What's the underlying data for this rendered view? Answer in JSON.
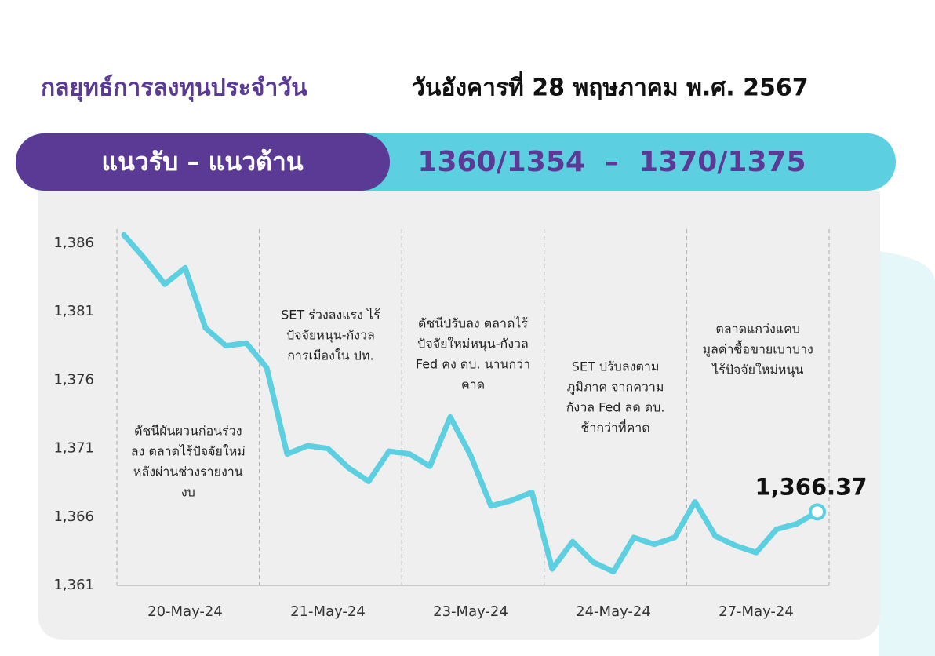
{
  "header": {
    "title": "กลยุทธ์การลงทุนประจำวัน",
    "date": "วันอังคารที่ 28 พฤษภาคม พ.ศ. 2567"
  },
  "banner": {
    "label": "แนวรับ – แนวต้าน",
    "value": "1360/1354  –  1370/1375"
  },
  "chart_data": {
    "type": "line",
    "color": "#5ccfe0",
    "categories": [
      null,
      null,
      null,
      "20-May-24",
      null,
      null,
      null,
      null,
      null,
      null,
      "21-May-24",
      null,
      null,
      null,
      null,
      null,
      null,
      "23-May-24",
      null,
      null,
      null,
      null,
      null,
      null,
      "24-May-24",
      null,
      null,
      null,
      null,
      null,
      null,
      "27-May-24",
      null,
      null,
      null
    ],
    "values": [
      1386.6,
      1384.9,
      1383.0,
      1384.2,
      1379.8,
      1378.5,
      1378.7,
      1376.9,
      1370.6,
      1371.2,
      1371.0,
      1369.6,
      1368.6,
      1370.8,
      1370.6,
      1369.7,
      1373.3,
      1370.5,
      1366.8,
      1367.2,
      1367.8,
      1362.2,
      1364.2,
      1362.7,
      1362.0,
      1364.5,
      1364.0,
      1364.5,
      1367.1,
      1364.6,
      1363.9,
      1363.4,
      1365.1,
      1365.5,
      1366.37
    ],
    "value_labels": [
      null,
      null,
      null,
      null,
      null,
      null,
      null,
      null,
      null,
      null,
      null,
      null,
      null,
      null,
      null,
      null,
      null,
      null,
      null,
      null,
      null,
      null,
      null,
      null,
      null,
      null,
      null,
      null,
      null,
      null,
      null,
      null,
      null,
      null,
      "1,366.37"
    ],
    "ylim": [
      1361,
      1388
    ],
    "yticks": [
      {
        "value": 1361,
        "label": "1,361"
      },
      {
        "value": 1366,
        "label": "1,366"
      },
      {
        "value": 1371,
        "label": "1,371"
      },
      {
        "value": 1376,
        "label": "1,376"
      },
      {
        "value": 1381,
        "label": "1,381"
      },
      {
        "value": 1386,
        "label": "1,386"
      }
    ],
    "notes": [
      [
        "ดัชนีผันผวนก่อนร่วง",
        "ลง ตลาดไร้ปัจจัยใหม่",
        "หลังผ่านช่วงรายงาน",
        "งบ"
      ],
      [
        "SET ร่วงลงแรง ไร้",
        "ปัจจัยหนุน-กังวล",
        "การเมืองใน ปท."
      ],
      [
        "ดัชนีปรับลง ตลาดไร้",
        "ปัจจัยใหม่หนุน-กังวล",
        "Fed คง ดบ. นานกว่า",
        "คาด"
      ],
      [
        "SET ปรับลงตาม",
        "ภูมิภาค จากความ",
        "กังวล Fed ลด ดบ.",
        "ช้ากว่าที่คาด"
      ],
      [
        "ตลาดแกว่งแคบ",
        "มูลค่าซื้อขายเบาบาง",
        "ไร้ปัจจัยใหม่หนุน"
      ]
    ]
  }
}
